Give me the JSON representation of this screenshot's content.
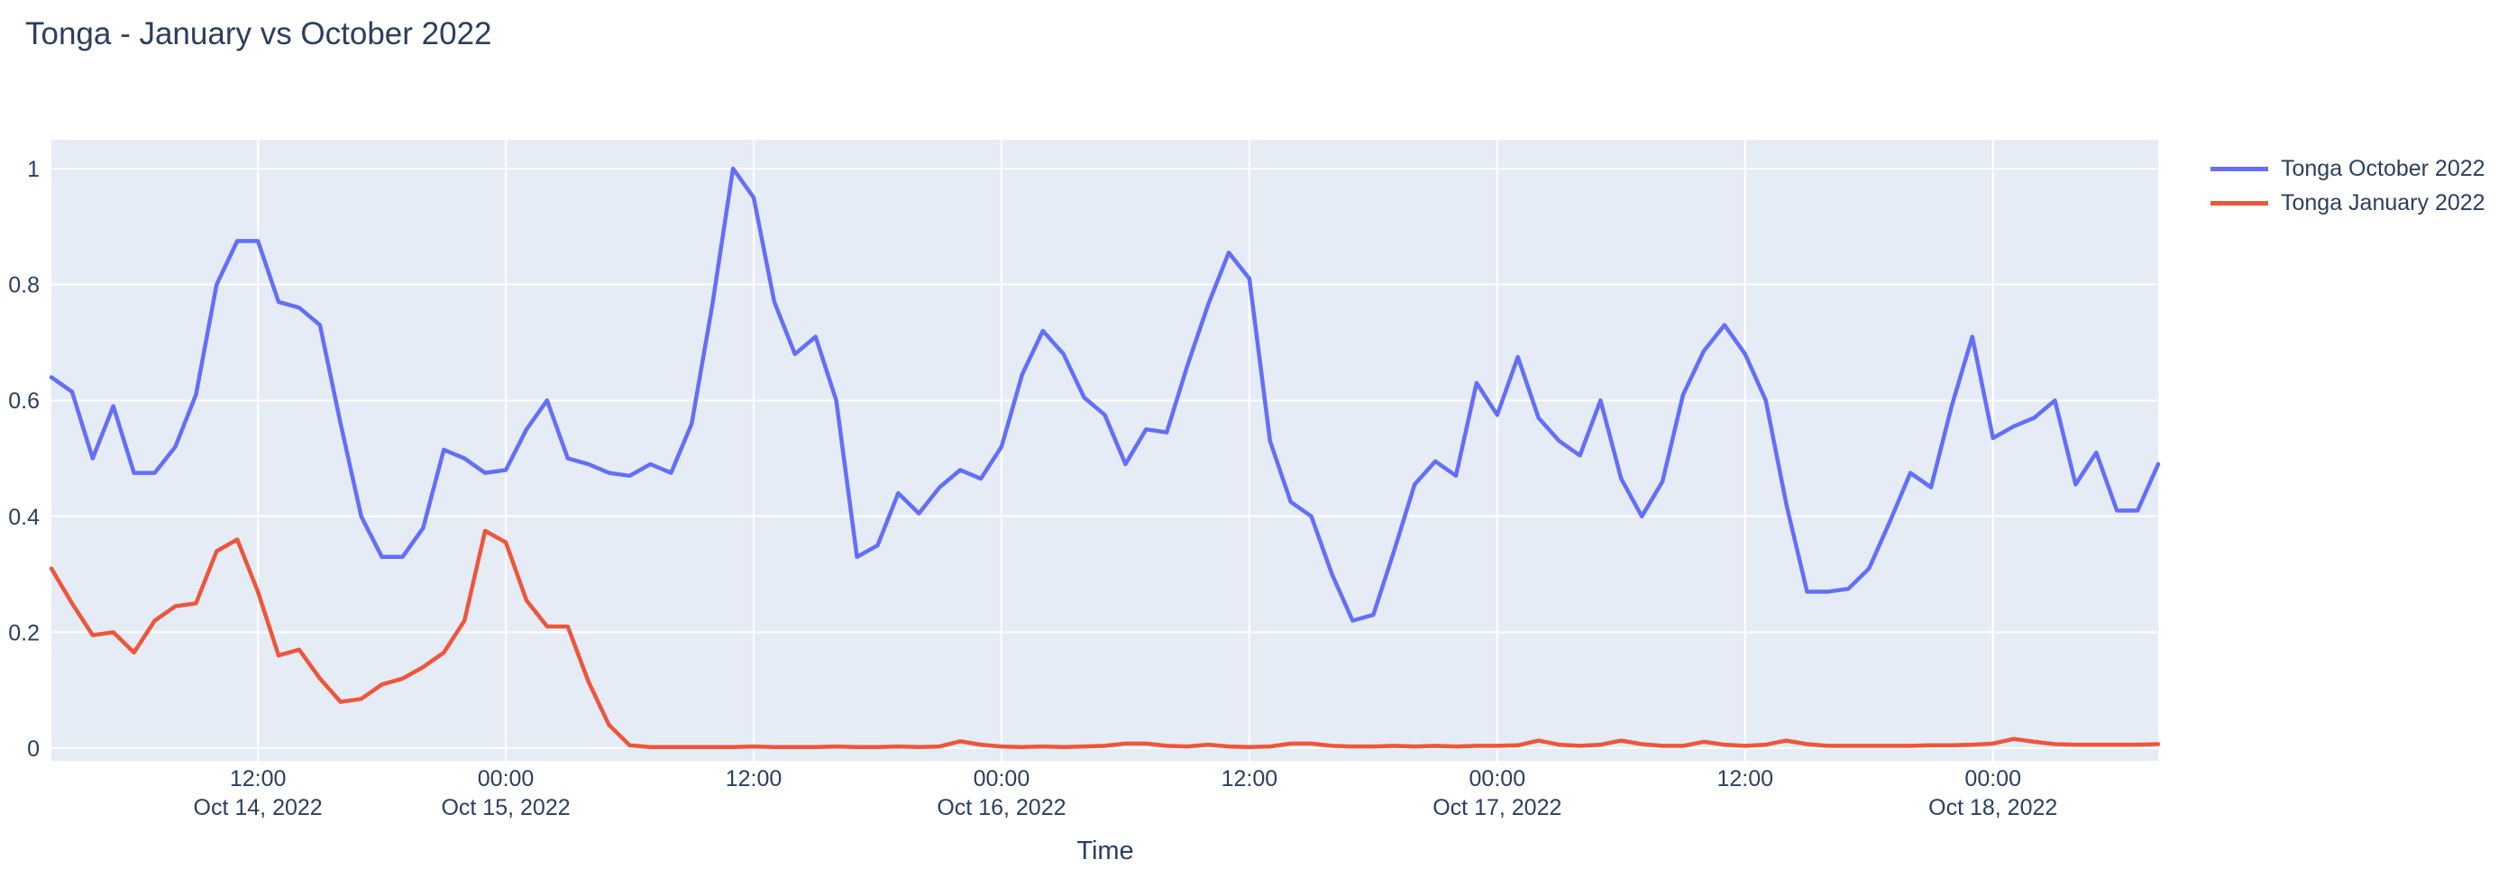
{
  "title": "Tonga - January vs October 2022",
  "chart_data": {
    "type": "line",
    "title": "Tonga - January vs October 2022",
    "xlabel": "Time",
    "ylabel": "",
    "x_start": "Oct 14, 2022 02:00",
    "x_end": "Oct 18, 2022 08:00",
    "x_interval_hours": 1,
    "n_points": 103,
    "ylim": [
      0,
      1
    ],
    "grid": "on",
    "plot_bgcolor": "#E5ECF6",
    "gridcolor": "#FFFFFF",
    "font_color": "#2a3f5f",
    "legend_position": "outside-top-right",
    "y_ticks": [
      {
        "v": 0,
        "label": "0"
      },
      {
        "v": 0.2,
        "label": "0.2"
      },
      {
        "v": 0.4,
        "label": "0.4"
      },
      {
        "v": 0.6,
        "label": "0.6"
      },
      {
        "v": 0.8,
        "label": "0.8"
      },
      {
        "v": 1,
        "label": "1"
      }
    ],
    "x_ticks": [
      {
        "hour_offset": 10,
        "time": "12:00",
        "date": "Oct 14, 2022"
      },
      {
        "hour_offset": 22,
        "time": "00:00",
        "date": "Oct 15, 2022"
      },
      {
        "hour_offset": 34,
        "time": "12:00",
        "date": ""
      },
      {
        "hour_offset": 46,
        "time": "00:00",
        "date": "Oct 16, 2022"
      },
      {
        "hour_offset": 58,
        "time": "12:00",
        "date": ""
      },
      {
        "hour_offset": 70,
        "time": "00:00",
        "date": "Oct 17, 2022"
      },
      {
        "hour_offset": 82,
        "time": "12:00",
        "date": ""
      },
      {
        "hour_offset": 94,
        "time": "00:00",
        "date": "Oct 18, 2022"
      }
    ],
    "series": [
      {
        "name": "Tonga October 2022",
        "color": "#636EFA",
        "values": [
          0.64,
          0.615,
          0.5,
          0.59,
          0.475,
          0.475,
          0.52,
          0.61,
          0.8,
          0.875,
          0.875,
          0.77,
          0.76,
          0.73,
          0.56,
          0.4,
          0.33,
          0.33,
          0.38,
          0.515,
          0.5,
          0.475,
          0.48,
          0.55,
          0.6,
          0.5,
          0.49,
          0.475,
          0.47,
          0.49,
          0.475,
          0.56,
          0.765,
          1.0,
          0.95,
          0.77,
          0.68,
          0.71,
          0.6,
          0.33,
          0.35,
          0.44,
          0.405,
          0.45,
          0.48,
          0.465,
          0.52,
          0.645,
          0.72,
          0.68,
          0.605,
          0.575,
          0.49,
          0.55,
          0.545,
          0.66,
          0.765,
          0.855,
          0.81,
          0.53,
          0.425,
          0.4,
          0.3,
          0.22,
          0.23,
          0.34,
          0.455,
          0.495,
          0.47,
          0.63,
          0.575,
          0.675,
          0.57,
          0.53,
          0.505,
          0.6,
          0.465,
          0.4,
          0.46,
          0.61,
          0.685,
          0.73,
          0.68,
          0.6,
          0.42,
          0.27,
          0.27,
          0.275,
          0.31,
          0.39,
          0.475,
          0.45,
          0.59,
          0.71,
          0.535,
          0.555,
          0.57,
          0.6,
          0.455,
          0.51,
          0.41,
          0.41,
          0.49
        ]
      },
      {
        "name": "Tonga January 2022",
        "color": "#EF553B",
        "values": [
          0.31,
          0.25,
          0.195,
          0.2,
          0.165,
          0.22,
          0.245,
          0.25,
          0.34,
          0.36,
          0.27,
          0.16,
          0.17,
          0.12,
          0.08,
          0.085,
          0.11,
          0.12,
          0.14,
          0.165,
          0.22,
          0.375,
          0.355,
          0.255,
          0.21,
          0.21,
          0.115,
          0.04,
          0.005,
          0.002,
          0.002,
          0.002,
          0.002,
          0.002,
          0.003,
          0.002,
          0.002,
          0.002,
          0.003,
          0.002,
          0.002,
          0.003,
          0.002,
          0.003,
          0.012,
          0.006,
          0.003,
          0.002,
          0.003,
          0.002,
          0.003,
          0.004,
          0.008,
          0.008,
          0.004,
          0.003,
          0.006,
          0.003,
          0.002,
          0.003,
          0.008,
          0.008,
          0.004,
          0.003,
          0.003,
          0.004,
          0.003,
          0.004,
          0.003,
          0.004,
          0.004,
          0.005,
          0.013,
          0.006,
          0.004,
          0.006,
          0.013,
          0.007,
          0.004,
          0.004,
          0.011,
          0.006,
          0.004,
          0.006,
          0.013,
          0.007,
          0.004,
          0.004,
          0.004,
          0.004,
          0.004,
          0.005,
          0.005,
          0.006,
          0.008,
          0.016,
          0.011,
          0.007,
          0.006,
          0.006,
          0.006,
          0.006,
          0.007
        ]
      }
    ]
  }
}
